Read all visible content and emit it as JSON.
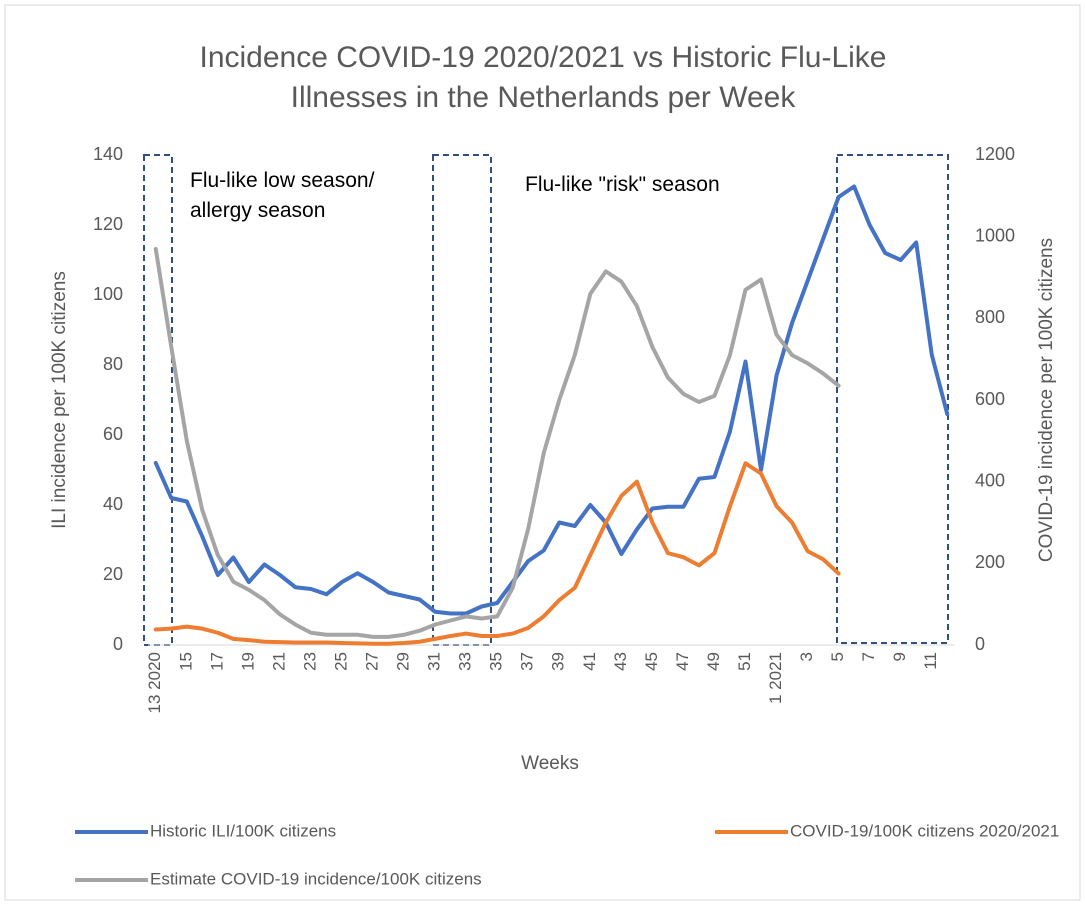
{
  "chart_data": {
    "type": "line",
    "title": "Incidence COVID-19 2020/2021 vs Historic Flu-Like Illnesses in the Netherlands per Week",
    "x_label": "Weeks",
    "y_label": "ILI incidence per 100K citizens",
    "y2_label": "COVID-19 incidence per 100K citizens",
    "annotations": [
      "Flu-like low season/ allergy season",
      "Flu-like \"risk\" season"
    ],
    "categories": [
      "13 2020",
      null,
      "15",
      null,
      "17",
      null,
      "19",
      null,
      "21",
      null,
      "23",
      null,
      "25",
      null,
      "27",
      null,
      "29",
      null,
      "31",
      null,
      "33",
      null,
      "35",
      null,
      "37",
      null,
      "39",
      null,
      "41",
      null,
      "43",
      null,
      "45",
      null,
      "47",
      null,
      "49",
      null,
      "51",
      null,
      "1 2021",
      null,
      "3",
      null,
      "5",
      null,
      "7",
      null,
      "9",
      null,
      "11",
      null
    ],
    "ylim": [
      0,
      140
    ],
    "yticks": [
      0,
      20,
      40,
      60,
      80,
      100,
      120,
      140
    ],
    "y2lim": [
      0,
      1200
    ],
    "y2ticks": [
      0,
      200,
      400,
      600,
      800,
      1000,
      1200
    ],
    "grid": false,
    "legend": "bottom",
    "series": [
      {
        "name": "Historic ILI/100K citizens",
        "color": "#4472c4",
        "values": [
          52,
          42,
          41,
          31,
          20,
          25,
          18,
          23,
          20,
          16.5,
          16,
          14.5,
          18,
          20.5,
          18,
          15,
          14,
          13,
          9.5,
          9,
          9,
          11,
          12,
          18,
          24,
          27,
          35,
          34,
          40,
          35,
          26,
          33,
          39,
          39.5,
          39.5,
          47.5,
          48,
          61,
          81,
          50,
          77,
          92,
          104,
          116,
          128,
          131,
          120,
          112,
          110,
          115,
          83,
          66
        ]
      },
      {
        "name": "COVID-19/100K citizens 2020/2021",
        "color": "#ed7d31",
        "axis": "y2",
        "values": [
          38,
          40,
          45,
          40,
          30,
          15,
          12,
          8,
          7,
          6,
          6,
          6,
          5,
          4,
          3,
          3,
          5,
          8,
          15,
          22,
          28,
          22,
          22,
          28,
          42,
          70,
          110,
          140,
          220,
          300,
          365,
          400,
          300,
          225,
          215,
          195,
          225,
          340,
          445,
          420,
          340,
          300,
          230,
          210,
          175,
          null,
          null,
          null,
          null,
          null,
          null,
          null
        ]
      },
      {
        "name": "Estimate COVID-19 incidence/100K citizens",
        "color": "#a5a5a5",
        "axis": "y2",
        "values": [
          970,
          730,
          500,
          330,
          220,
          155,
          135,
          110,
          75,
          50,
          30,
          25,
          25,
          25,
          20,
          20,
          25,
          35,
          50,
          60,
          70,
          65,
          70,
          140,
          285,
          470,
          600,
          710,
          860,
          915,
          890,
          830,
          730,
          655,
          615,
          595,
          610,
          710,
          870,
          895,
          760,
          710,
          690,
          665,
          635,
          null,
          null,
          null,
          null,
          null,
          null,
          null
        ]
      }
    ]
  }
}
